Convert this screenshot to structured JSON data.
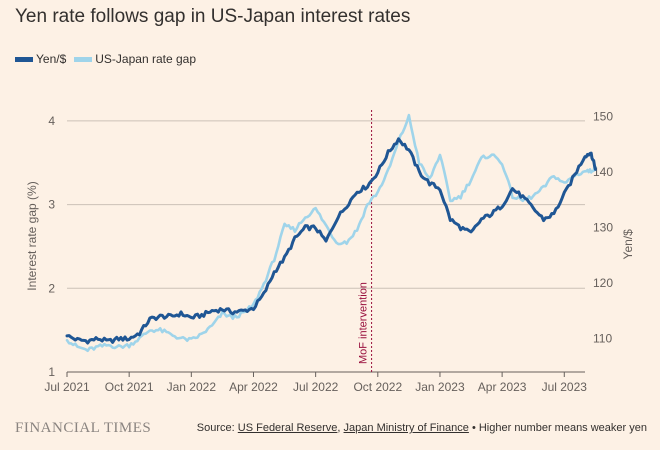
{
  "chart_data": {
    "type": "line",
    "title": "Yen rate follows gap in US-Japan interest rates",
    "ylabel_left": "Interest rate gap (%)",
    "ylabel_right": "Yen/$",
    "y_left": {
      "min": 1,
      "max": 4.25,
      "ticks": [
        1,
        2,
        3,
        4
      ]
    },
    "y_right": {
      "min": 104,
      "max": 153,
      "ticks": [
        110,
        120,
        130,
        140,
        150
      ]
    },
    "x_ticks": [
      "Jul 2021",
      "Oct 2021",
      "Jan 2022",
      "Apr 2022",
      "Jul 2022",
      "Oct 2022",
      "Jan 2023",
      "Apr 2023",
      "Jul 2023"
    ],
    "x_range_months": [
      0,
      25
    ],
    "grid": true,
    "legend_position": "top-left",
    "annotation": {
      "label": "MoF intervention",
      "x_month": 14.7
    },
    "series": [
      {
        "name": "Yen/$",
        "axis": "right",
        "color": "#1f5694",
        "points": [
          [
            0,
            110.5
          ],
          [
            0.5,
            109.8
          ],
          [
            1,
            109.6
          ],
          [
            1.5,
            110
          ],
          [
            2,
            109.5
          ],
          [
            2.5,
            110
          ],
          [
            3,
            110
          ],
          [
            3.5,
            111
          ],
          [
            4,
            113.5
          ],
          [
            4.5,
            114
          ],
          [
            5,
            114
          ],
          [
            5.5,
            114.5
          ],
          [
            6,
            113.8
          ],
          [
            6.5,
            114.2
          ],
          [
            7,
            115
          ],
          [
            7.5,
            115.3
          ],
          [
            8,
            114.8
          ],
          [
            8.5,
            115
          ],
          [
            9,
            115.5
          ],
          [
            9.5,
            118
          ],
          [
            10,
            122
          ],
          [
            10.5,
            124.5
          ],
          [
            11,
            128
          ],
          [
            11.5,
            130
          ],
          [
            12,
            130
          ],
          [
            12.5,
            127.5
          ],
          [
            13,
            131.5
          ],
          [
            13.5,
            134
          ],
          [
            14,
            136.5
          ],
          [
            14.5,
            137.5
          ],
          [
            15,
            140
          ],
          [
            15.5,
            143.5
          ],
          [
            16,
            146
          ],
          [
            16.5,
            144
          ],
          [
            17,
            140
          ],
          [
            17.5,
            138
          ],
          [
            18,
            137
          ],
          [
            18.5,
            131.5
          ],
          [
            19,
            130
          ],
          [
            19.5,
            129
          ],
          [
            20,
            131.5
          ],
          [
            20.5,
            132.5
          ],
          [
            21,
            134
          ],
          [
            21.5,
            137
          ],
          [
            22,
            135.5
          ],
          [
            22.5,
            133.5
          ],
          [
            23,
            131.5
          ],
          [
            23.5,
            132.5
          ],
          [
            24,
            136
          ],
          [
            24.5,
            139.5
          ],
          [
            25,
            143
          ],
          [
            25.3,
            143.5
          ],
          [
            25.5,
            140.5
          ]
        ]
      },
      {
        "name": "US-Japan rate gap",
        "axis": "left",
        "color": "#9fd4ea",
        "points": [
          [
            0,
            1.38
          ],
          [
            0.5,
            1.3
          ],
          [
            1,
            1.26
          ],
          [
            1.5,
            1.3
          ],
          [
            2,
            1.32
          ],
          [
            2.5,
            1.3
          ],
          [
            3,
            1.32
          ],
          [
            3.5,
            1.4
          ],
          [
            4,
            1.5
          ],
          [
            4.5,
            1.5
          ],
          [
            5,
            1.45
          ],
          [
            5.5,
            1.4
          ],
          [
            6,
            1.38
          ],
          [
            6.5,
            1.45
          ],
          [
            7,
            1.55
          ],
          [
            7.5,
            1.7
          ],
          [
            8,
            1.65
          ],
          [
            8.5,
            1.7
          ],
          [
            9,
            1.8
          ],
          [
            9.5,
            2.05
          ],
          [
            10,
            2.35
          ],
          [
            10.5,
            2.75
          ],
          [
            11,
            2.7
          ],
          [
            11.5,
            2.85
          ],
          [
            12,
            2.95
          ],
          [
            12.5,
            2.75
          ],
          [
            13,
            2.55
          ],
          [
            13.5,
            2.55
          ],
          [
            14,
            2.7
          ],
          [
            14.5,
            3
          ],
          [
            15,
            3.15
          ],
          [
            15.5,
            3.4
          ],
          [
            16,
            3.75
          ],
          [
            16.5,
            4.05
          ],
          [
            17,
            3.5
          ],
          [
            17.5,
            3.3
          ],
          [
            18,
            3.6
          ],
          [
            18.5,
            3.05
          ],
          [
            19,
            3.1
          ],
          [
            19.5,
            3.3
          ],
          [
            20,
            3.55
          ],
          [
            20.5,
            3.6
          ],
          [
            21,
            3.5
          ],
          [
            21.5,
            3.1
          ],
          [
            22,
            3.05
          ],
          [
            22.5,
            3.1
          ],
          [
            23,
            3.2
          ],
          [
            23.5,
            3.35
          ],
          [
            24,
            3.25
          ],
          [
            24.5,
            3.35
          ],
          [
            25,
            3.4
          ],
          [
            25.3,
            3.4
          ],
          [
            25.5,
            3.45
          ]
        ]
      }
    ]
  },
  "legend": [
    {
      "label": "Yen/$",
      "color": "#1f5694"
    },
    {
      "label": "US-Japan rate gap",
      "color": "#9fd4ea"
    }
  ],
  "footer": {
    "brand": "FINANCIAL TIMES",
    "source_prefix": "Source: ",
    "source_1": "US Federal Reserve",
    "source_sep": ", ",
    "source_2": "Japan Ministry of Finance",
    "source_suffix": " • Higher number means weaker yen"
  }
}
